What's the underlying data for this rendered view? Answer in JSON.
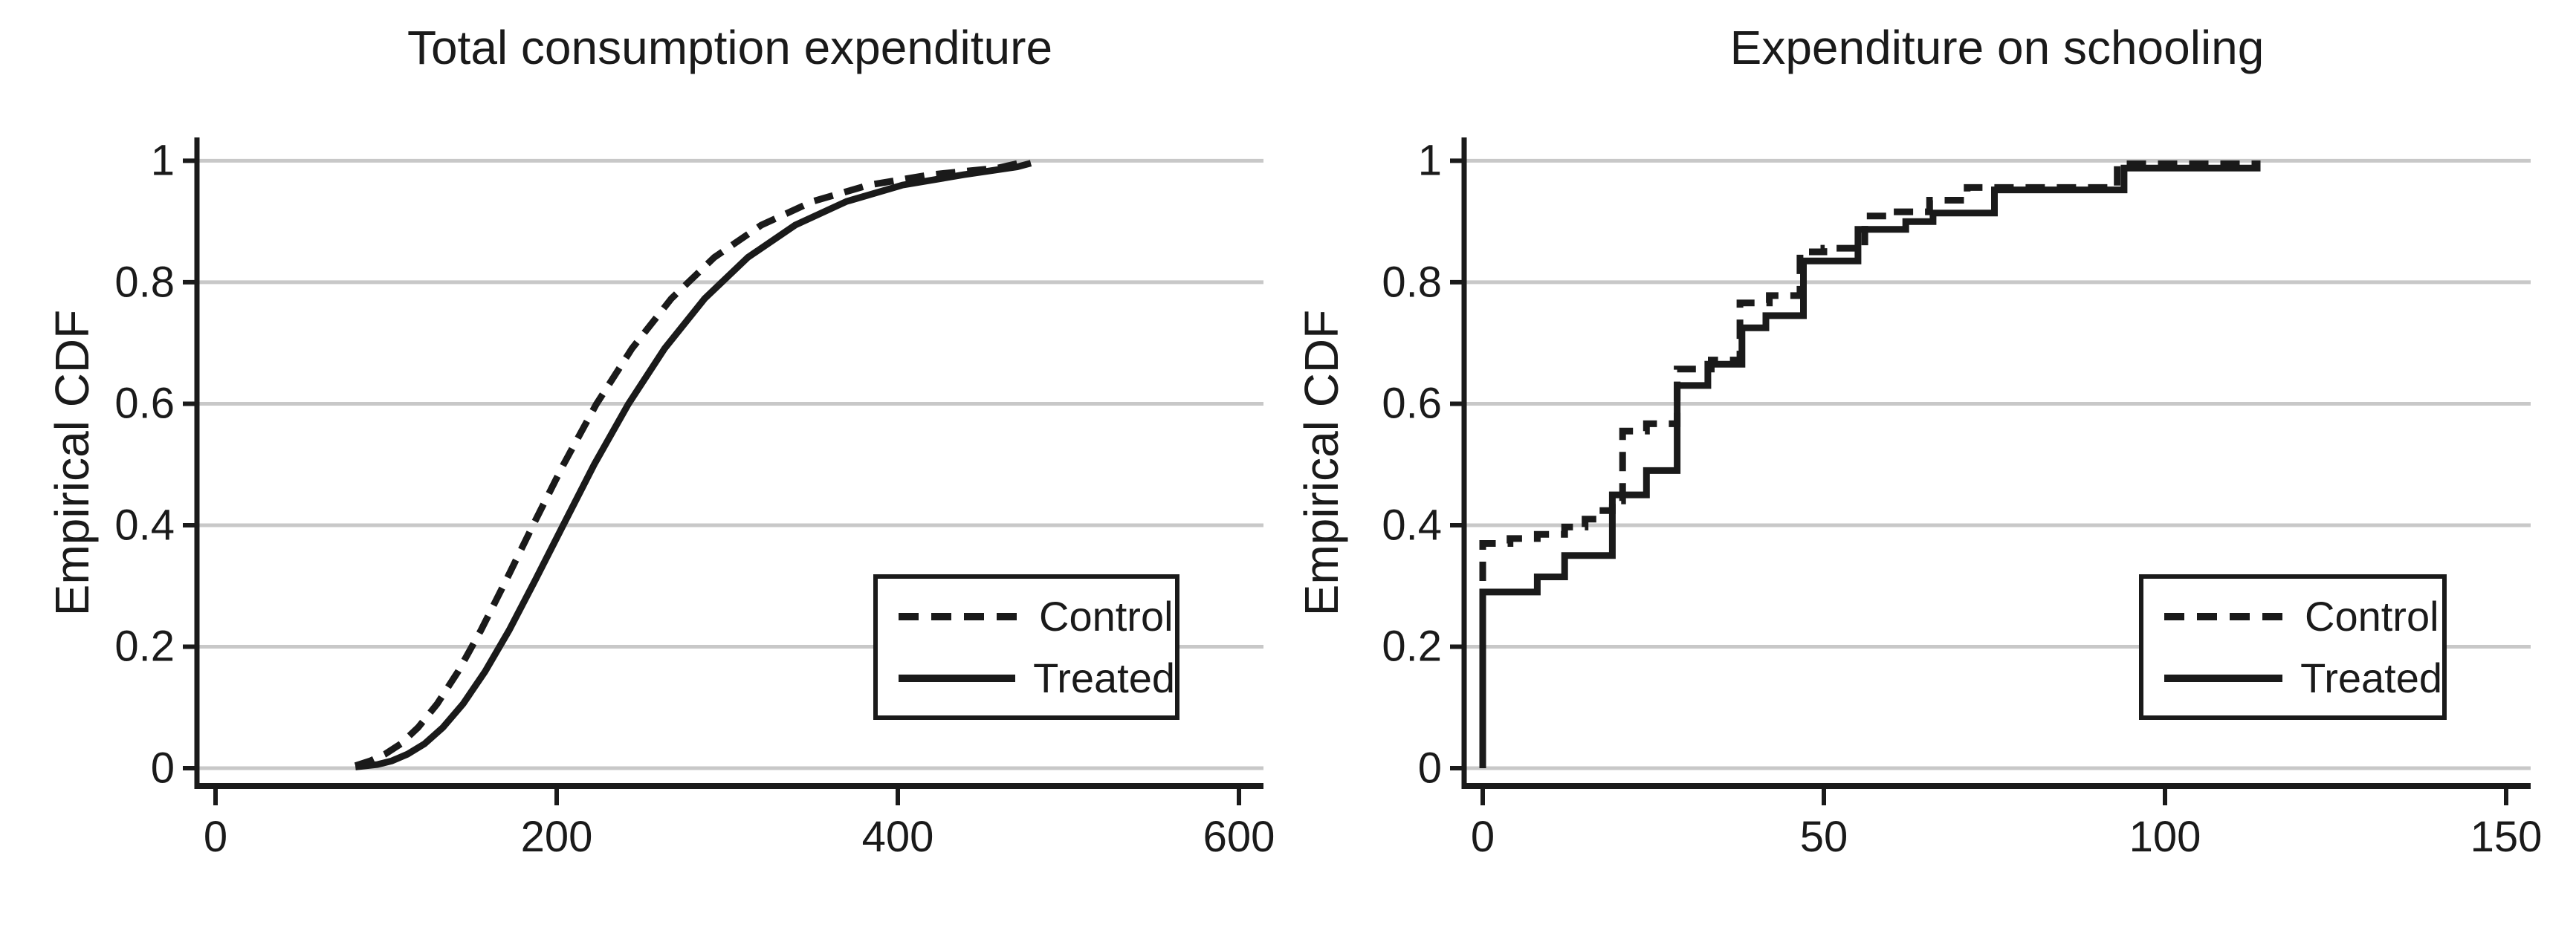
{
  "figure": {
    "background": "#ffffff",
    "line_color": "#1a1a1a",
    "grid_color": "#c8c8c8",
    "grid": true,
    "legend_position": "inside-right-middle-boxed"
  },
  "chart_data": [
    {
      "type": "line",
      "title": "Total consumption expenditure",
      "ylabel": "Empirical CDF",
      "xlabel": "",
      "x_ticks": [
        0,
        200,
        400,
        600
      ],
      "y_ticks": [
        0,
        0.2,
        0.4,
        0.6,
        0.8,
        1
      ],
      "xlim": [
        0,
        613
      ],
      "ylim": [
        0,
        1
      ],
      "series": [
        {
          "name": "Control",
          "style": "dashed",
          "points": [
            [
              82,
              0.004
            ],
            [
              90.7,
              0.012
            ],
            [
              99.3,
              0.023
            ],
            [
              108.6,
              0.04
            ],
            [
              118.8,
              0.067
            ],
            [
              130,
              0.106
            ],
            [
              142.2,
              0.159
            ],
            [
              155.6,
              0.227
            ],
            [
              170.3,
              0.309
            ],
            [
              186.3,
              0.401
            ],
            [
              204,
              0.5
            ],
            [
              223.2,
              0.599
            ],
            [
              244.2,
              0.691
            ],
            [
              267.2,
              0.773
            ],
            [
              292.4,
              0.841
            ],
            [
              319.9,
              0.894
            ],
            [
              350,
              0.933
            ],
            [
              383,
              0.96
            ],
            [
              419.1,
              0.977
            ],
            [
              458.5,
              0.988
            ],
            [
              468,
              0.994
            ],
            [
              474,
              0.998
            ]
          ]
        },
        {
          "name": "Treated",
          "style": "solid",
          "points": [
            [
              82,
              0.002
            ],
            [
              94.9,
              0.006
            ],
            [
              103.3,
              0.012
            ],
            [
              112.5,
              0.023
            ],
            [
              122.5,
              0.04
            ],
            [
              133.3,
              0.067
            ],
            [
              145.2,
              0.106
            ],
            [
              158,
              0.159
            ],
            [
              172.1,
              0.227
            ],
            [
              187.3,
              0.309
            ],
            [
              204,
              0.401
            ],
            [
              222,
              0.5
            ],
            [
              241.9,
              0.599
            ],
            [
              263.3,
              0.691
            ],
            [
              286.7,
              0.773
            ],
            [
              312.1,
              0.841
            ],
            [
              339.8,
              0.894
            ],
            [
              369.9,
              0.933
            ],
            [
              402.8,
              0.96
            ],
            [
              438.5,
              0.977
            ],
            [
              470,
              0.99
            ],
            [
              478,
              0.996
            ]
          ]
        }
      ]
    },
    {
      "type": "step",
      "title": "Expenditure on schooling",
      "ylabel": "Empirical CDF",
      "xlabel": "",
      "x_ticks": [
        0,
        50,
        100,
        150
      ],
      "y_ticks": [
        0,
        0.2,
        0.4,
        0.6,
        0.8,
        1
      ],
      "xlim": [
        0,
        156
      ],
      "ylim": [
        0,
        1
      ],
      "series": [
        {
          "name": "Control",
          "style": "dashed",
          "start": [
            0,
            0
          ],
          "points": [
            [
              0,
              0.37
            ],
            [
              4,
              0.378
            ],
            [
              8,
              0.385
            ],
            [
              12,
              0.397
            ],
            [
              15,
              0.41
            ],
            [
              17,
              0.424
            ],
            [
              19,
              0.44
            ],
            [
              20.5,
              0.555
            ],
            [
              24,
              0.567
            ],
            [
              28.5,
              0.657
            ],
            [
              33.5,
              0.672
            ],
            [
              37.7,
              0.766
            ],
            [
              42,
              0.778
            ],
            [
              46.5,
              0.85
            ],
            [
              50,
              0.856
            ],
            [
              56,
              0.909
            ],
            [
              60,
              0.916
            ],
            [
              65.5,
              0.935
            ],
            [
              71,
              0.956
            ],
            [
              93,
              0.995
            ],
            [
              114,
              0.995
            ]
          ]
        },
        {
          "name": "Treated",
          "style": "solid",
          "start": [
            0,
            0
          ],
          "points": [
            [
              0,
              0.29
            ],
            [
              8,
              0.315
            ],
            [
              12,
              0.35
            ],
            [
              19,
              0.45
            ],
            [
              24,
              0.49
            ],
            [
              28.5,
              0.63
            ],
            [
              33,
              0.665
            ],
            [
              38,
              0.725
            ],
            [
              41.5,
              0.745
            ],
            [
              47,
              0.835
            ],
            [
              55,
              0.887
            ],
            [
              62,
              0.9
            ],
            [
              66,
              0.914
            ],
            [
              75,
              0.952
            ],
            [
              94,
              0.988
            ],
            [
              114,
              0.988
            ]
          ]
        }
      ]
    }
  ]
}
